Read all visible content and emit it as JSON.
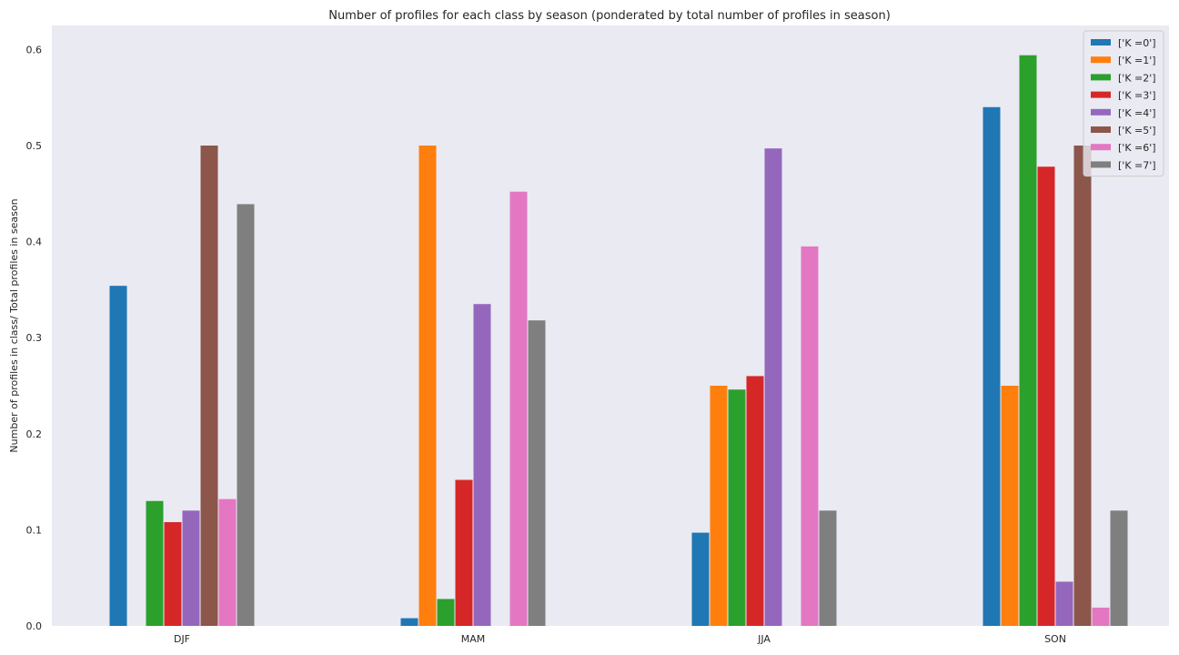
{
  "chart_data": {
    "type": "bar",
    "title": "Number of profiles for each class by season (ponderated by total number of profiles in season)",
    "xlabel": "",
    "ylabel": "Number of profiles in class/ Total profiles in season",
    "categories": [
      "DJF",
      "MAM",
      "JJA",
      "SON"
    ],
    "ylim": [
      0,
      0.625
    ],
    "yticks": [
      0.0,
      0.1,
      0.2,
      0.3,
      0.4,
      0.5,
      0.6
    ],
    "ytick_labels": [
      "0.0",
      "0.1",
      "0.2",
      "0.3",
      "0.4",
      "0.5",
      "0.6"
    ],
    "grid": false,
    "legend_position": "top-right",
    "background_color": "#eaeaf2",
    "series": [
      {
        "name": "['K =0']",
        "color": "#1f77b4",
        "values": [
          0.354,
          0.008,
          0.097,
          0.54
        ]
      },
      {
        "name": "['K =1']",
        "color": "#ff7f0e",
        "values": [
          0.0,
          0.5,
          0.25,
          0.25
        ]
      },
      {
        "name": "['K =2']",
        "color": "#2ca02c",
        "values": [
          0.13,
          0.028,
          0.246,
          0.594
        ]
      },
      {
        "name": "['K =3']",
        "color": "#d62728",
        "values": [
          0.108,
          0.152,
          0.26,
          0.478
        ]
      },
      {
        "name": "['K =4']",
        "color": "#9467bd",
        "values": [
          0.12,
          0.335,
          0.497,
          0.046
        ]
      },
      {
        "name": "['K =5']",
        "color": "#8c564b",
        "values": [
          0.5,
          0.0,
          0.0,
          0.5
        ]
      },
      {
        "name": "['K =6']",
        "color": "#e377c2",
        "values": [
          0.132,
          0.452,
          0.395,
          0.019
        ]
      },
      {
        "name": "['K =7']",
        "color": "#7f7f7f",
        "values": [
          0.439,
          0.318,
          0.12,
          0.12
        ]
      }
    ]
  }
}
